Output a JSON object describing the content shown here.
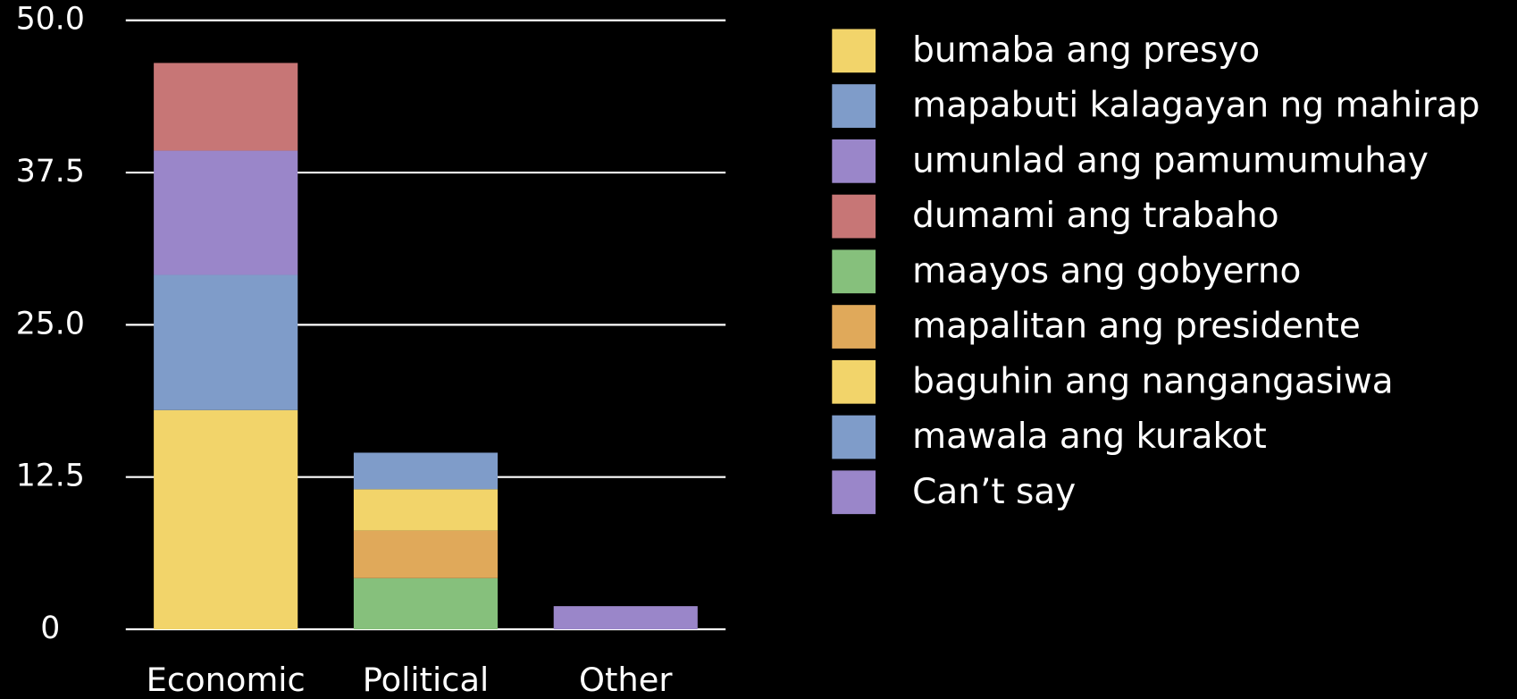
{
  "chart_data": {
    "type": "stacked_bar",
    "categories": [
      "Economic",
      "Political",
      "Other"
    ],
    "series": [
      {
        "name": "bumaba ang presyo",
        "color": "#f2d46a",
        "values": [
          18.0,
          0,
          0
        ]
      },
      {
        "name": "mapabuti kalagayan ng mahirap",
        "color": "#7f9cc9",
        "values": [
          11.1,
          0,
          0
        ]
      },
      {
        "name": "umunlad ang pamumumuhay",
        "color": "#9a86c9",
        "values": [
          10.2,
          0,
          0
        ]
      },
      {
        "name": "dumami ang trabaho",
        "color": "#c77676",
        "values": [
          7.2,
          0,
          0
        ]
      },
      {
        "name": "maayos ang gobyerno",
        "color": "#86c07c",
        "values": [
          0,
          4.2,
          0
        ]
      },
      {
        "name": "mapalitan ang presidente",
        "color": "#e0a95a",
        "values": [
          0,
          3.9,
          0
        ]
      },
      {
        "name": "baguhin ang nangangasiwa",
        "color": "#f2d46a",
        "values": [
          0,
          3.4,
          0
        ]
      },
      {
        "name": "mawala ang kurakot",
        "color": "#7f9cc9",
        "values": [
          0,
          3.0,
          0
        ]
      },
      {
        "name": "Can’t say",
        "color": "#9a86c9",
        "values": [
          0,
          0,
          1.9
        ]
      }
    ],
    "ylim": [
      0,
      50
    ],
    "yticks": [
      0,
      {
        "value": 12.5,
        "label": "12.5"
      },
      {
        "value": 25,
        "label": "25.0"
      },
      37.5,
      {
        "value": 50,
        "label": "50.0"
      }
    ],
    "grid": true,
    "legend": "right"
  }
}
